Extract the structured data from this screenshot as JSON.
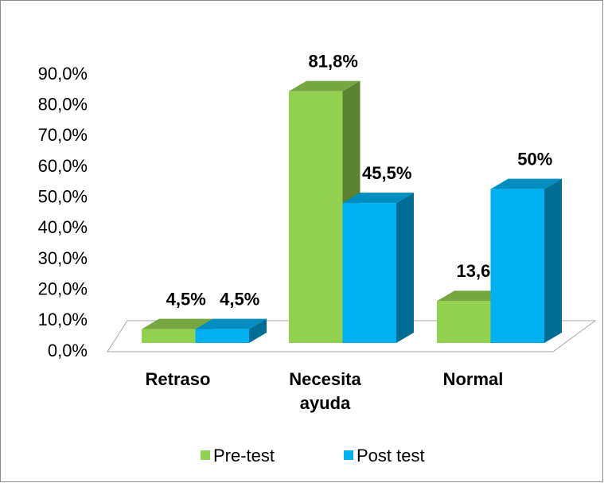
{
  "chart_data": {
    "type": "bar3d",
    "categories": [
      "Retraso",
      "Necesita ayuda",
      "Normal"
    ],
    "series": [
      {
        "name": "Pre-test",
        "color": "#92d050",
        "values": [
          4.5,
          81.8,
          13.6
        ],
        "value_labels": [
          "4,5%",
          "81,8%",
          "13,6%"
        ]
      },
      {
        "name": "Post test",
        "color": "#00b0f0",
        "values": [
          4.5,
          45.5,
          50
        ],
        "value_labels": [
          "4,5%",
          "45,5%",
          "50%"
        ]
      }
    ],
    "ylim": [
      0,
      90
    ],
    "yticks": [
      {
        "value": 0,
        "label": "0,0%"
      },
      {
        "value": 10,
        "label": "10,0%"
      },
      {
        "value": 20,
        "label": "20,0%"
      },
      {
        "value": 30,
        "label": "30,0%"
      },
      {
        "value": 40,
        "label": "40,0%"
      },
      {
        "value": 50,
        "label": "50,0%"
      },
      {
        "value": 60,
        "label": "60,0%"
      },
      {
        "value": 70,
        "label": "70,0%"
      },
      {
        "value": 80,
        "label": "80,0%"
      },
      {
        "value": 90,
        "label": "90,0%"
      }
    ],
    "legend": "bottom"
  }
}
